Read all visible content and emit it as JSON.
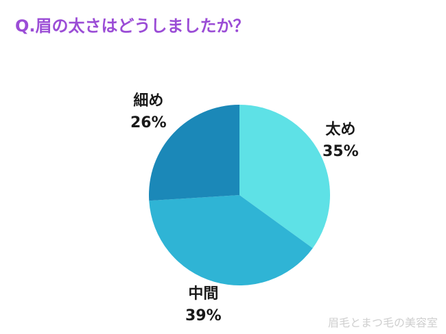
{
  "title": "Q.眉の太さはどうしましたか？",
  "watermark": "眉毛とまつ毛の美容室",
  "chart_data": {
    "type": "pie",
    "title": "Q.眉の太さはどうしましたか？",
    "start_angle_deg": 0,
    "direction": "clockwise",
    "slices": [
      {
        "label": "太め",
        "value": 35,
        "value_label": "35%",
        "color": "#5ee1e6"
      },
      {
        "label": "中間",
        "value": 39,
        "value_label": "39%",
        "color": "#2fb4d5"
      },
      {
        "label": "細め",
        "value": 26,
        "value_label": "26%",
        "color": "#1b88b8"
      }
    ]
  }
}
